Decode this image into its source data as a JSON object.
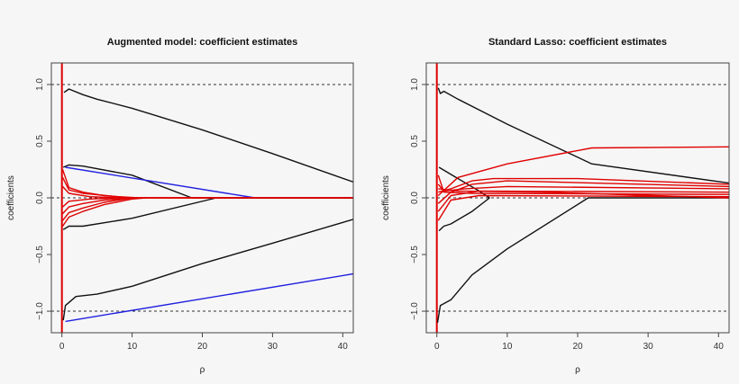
{
  "chart_data": [
    {
      "type": "line",
      "title": "Augmented model: coefficient estimates",
      "xlabel": "ρ",
      "ylabel": "coefficients",
      "xlim": [
        -1.5,
        41.5
      ],
      "ylim": [
        -1.19,
        1.19
      ],
      "xticks": [
        "0",
        "10",
        "20",
        "30",
        "40"
      ],
      "yticks": [
        "-1.0",
        "-0.5",
        "0.0",
        "0.5",
        "1.0"
      ],
      "reference_lines_y": [
        1,
        0,
        -1
      ],
      "series": [
        {
          "color": "#e00000",
          "points": [
            [
              0,
              -1.19
            ],
            [
              0,
              1.19
            ]
          ]
        },
        {
          "color": "#111111",
          "points": [
            [
              0.3,
              0.93
            ],
            [
              1,
              0.96
            ],
            [
              3,
              0.91
            ],
            [
              5,
              0.87
            ],
            [
              10,
              0.79
            ],
            [
              20,
              0.6
            ],
            [
              30,
              0.39
            ],
            [
              41.5,
              0.14
            ]
          ]
        },
        {
          "color": "#111111",
          "points": [
            [
              0.2,
              0.27
            ],
            [
              1,
              0.29
            ],
            [
              3,
              0.28
            ],
            [
              10,
              0.2
            ],
            [
              18.5,
              0
            ],
            [
              41.5,
              0
            ]
          ]
        },
        {
          "color": "#111111",
          "points": [
            [
              0.2,
              -0.28
            ],
            [
              1,
              -0.25
            ],
            [
              3,
              -0.25
            ],
            [
              10,
              -0.18
            ],
            [
              22,
              0
            ],
            [
              41.5,
              0
            ]
          ]
        },
        {
          "color": "#111111",
          "points": [
            [
              0.2,
              -1.08
            ],
            [
              0.5,
              -0.95
            ],
            [
              2,
              -0.87
            ],
            [
              5,
              -0.85
            ],
            [
              10,
              -0.78
            ],
            [
              20,
              -0.58
            ],
            [
              30,
              -0.4
            ],
            [
              41.5,
              -0.19
            ]
          ]
        },
        {
          "color": "#2020e0",
          "points": [
            [
              0.5,
              0.27
            ],
            [
              27.5,
              0
            ],
            [
              41.5,
              0
            ]
          ]
        },
        {
          "color": "#2020e0",
          "points": [
            [
              0.5,
              -1.09
            ],
            [
              41.5,
              -0.67
            ]
          ]
        },
        {
          "color": "#e00000",
          "points": [
            [
              0.1,
              0.25
            ],
            [
              1,
              0.09
            ],
            [
              3,
              0.05
            ],
            [
              6,
              0.02
            ],
            [
              10,
              0
            ],
            [
              41.5,
              0
            ]
          ]
        },
        {
          "color": "#e00000",
          "points": [
            [
              0.1,
              0.18
            ],
            [
              1,
              0.07
            ],
            [
              3,
              0.04
            ],
            [
              8,
              0.01
            ],
            [
              11,
              0
            ],
            [
              41.5,
              0
            ]
          ]
        },
        {
          "color": "#e00000",
          "points": [
            [
              0.1,
              0.1
            ],
            [
              1,
              0.04
            ],
            [
              4,
              0.01
            ],
            [
              8,
              0
            ],
            [
              41.5,
              0
            ]
          ]
        },
        {
          "color": "#e00000",
          "points": [
            [
              0.1,
              -0.08
            ],
            [
              1,
              -0.03
            ],
            [
              4,
              -0.01
            ],
            [
              8,
              0
            ]
          ]
        },
        {
          "color": "#e00000",
          "points": [
            [
              0.1,
              -0.14
            ],
            [
              1,
              -0.08
            ],
            [
              3,
              -0.05
            ],
            [
              6,
              -0.02
            ],
            [
              10,
              0
            ]
          ]
        },
        {
          "color": "#e00000",
          "points": [
            [
              0.1,
              -0.2
            ],
            [
              1,
              -0.13
            ],
            [
              3,
              -0.09
            ],
            [
              6,
              -0.04
            ],
            [
              10,
              0
            ]
          ]
        },
        {
          "color": "#e00000",
          "points": [
            [
              0.1,
              -0.25
            ],
            [
              1,
              -0.17
            ],
            [
              3,
              -0.12
            ],
            [
              6,
              -0.06
            ],
            [
              10,
              -0.01
            ],
            [
              12,
              0
            ]
          ]
        }
      ]
    },
    {
      "type": "line",
      "title": "Standard Lasso: coefficient estimates",
      "xlabel": "ρ",
      "ylabel": "coefficients",
      "xlim": [
        -1.5,
        41.5
      ],
      "ylim": [
        -1.19,
        1.19
      ],
      "xticks": [
        "0",
        "10",
        "20",
        "30",
        "40"
      ],
      "yticks": [
        "-1.0",
        "-0.5",
        "0.0",
        "0.5",
        "1.0"
      ],
      "reference_lines_y": [
        1,
        0,
        -1
      ],
      "series": [
        {
          "color": "#e00000",
          "points": [
            [
              0,
              -1.19
            ],
            [
              0,
              1.19
            ]
          ]
        },
        {
          "color": "#111111",
          "points": [
            [
              0.2,
              0.97
            ],
            [
              0.5,
              0.92
            ],
            [
              1,
              0.94
            ],
            [
              3,
              0.87
            ],
            [
              10,
              0.65
            ],
            [
              22,
              0.3
            ],
            [
              41.5,
              0.13
            ]
          ]
        },
        {
          "color": "#111111",
          "points": [
            [
              0.3,
              0.27
            ],
            [
              3,
              0.17
            ],
            [
              6,
              0.06
            ],
            [
              7.5,
              0
            ]
          ]
        },
        {
          "color": "#111111",
          "points": [
            [
              0.3,
              -0.29
            ],
            [
              1,
              -0.25
            ],
            [
              2,
              -0.23
            ],
            [
              5,
              -0.12
            ],
            [
              7.5,
              0
            ]
          ]
        },
        {
          "color": "#111111",
          "points": [
            [
              0.1,
              -1.1
            ],
            [
              0.5,
              -0.95
            ],
            [
              2,
              -0.9
            ],
            [
              5,
              -0.68
            ],
            [
              10,
              -0.45
            ],
            [
              21.5,
              0
            ],
            [
              41.5,
              0
            ]
          ]
        },
        {
          "color": "#e00000",
          "points": [
            [
              0.2,
              0.02
            ],
            [
              3,
              0.18
            ],
            [
              10,
              0.3
            ],
            [
              22,
              0.44
            ],
            [
              41.5,
              0.45
            ]
          ]
        },
        {
          "color": "#e00000",
          "points": [
            [
              0.2,
              0.05
            ],
            [
              2,
              0.08
            ],
            [
              5,
              0.15
            ],
            [
              8,
              0.17
            ],
            [
              20,
              0.17
            ],
            [
              41.5,
              0.12
            ]
          ]
        },
        {
          "color": "#e00000",
          "points": [
            [
              0.2,
              -0.05
            ],
            [
              2,
              0.05
            ],
            [
              5,
              0.12
            ],
            [
              10,
              0.15
            ],
            [
              41.5,
              0.1
            ]
          ]
        },
        {
          "color": "#e00000",
          "points": [
            [
              0.2,
              0.12
            ],
            [
              1,
              0.06
            ],
            [
              4,
              0.08
            ],
            [
              10,
              0.1
            ],
            [
              41.5,
              0.08
            ]
          ]
        },
        {
          "color": "#e00000",
          "points": [
            [
              0.2,
              -0.12
            ],
            [
              2,
              0.02
            ],
            [
              6,
              0.06
            ],
            [
              41.5,
              0.05
            ]
          ]
        },
        {
          "color": "#e00000",
          "points": [
            [
              0.2,
              0.2
            ],
            [
              1,
              0.05
            ],
            [
              5,
              0.04
            ],
            [
              41.5,
              0.03
            ]
          ]
        },
        {
          "color": "#e00000",
          "points": [
            [
              0.2,
              -0.2
            ],
            [
              2,
              -0.02
            ],
            [
              6,
              0.02
            ],
            [
              41.5,
              0.01
            ]
          ]
        },
        {
          "color": "#e00000",
          "points": [
            [
              0.2,
              0.08
            ],
            [
              3,
              0.06
            ],
            [
              15,
              0.05
            ],
            [
              41.5,
              0
            ]
          ]
        }
      ]
    }
  ]
}
